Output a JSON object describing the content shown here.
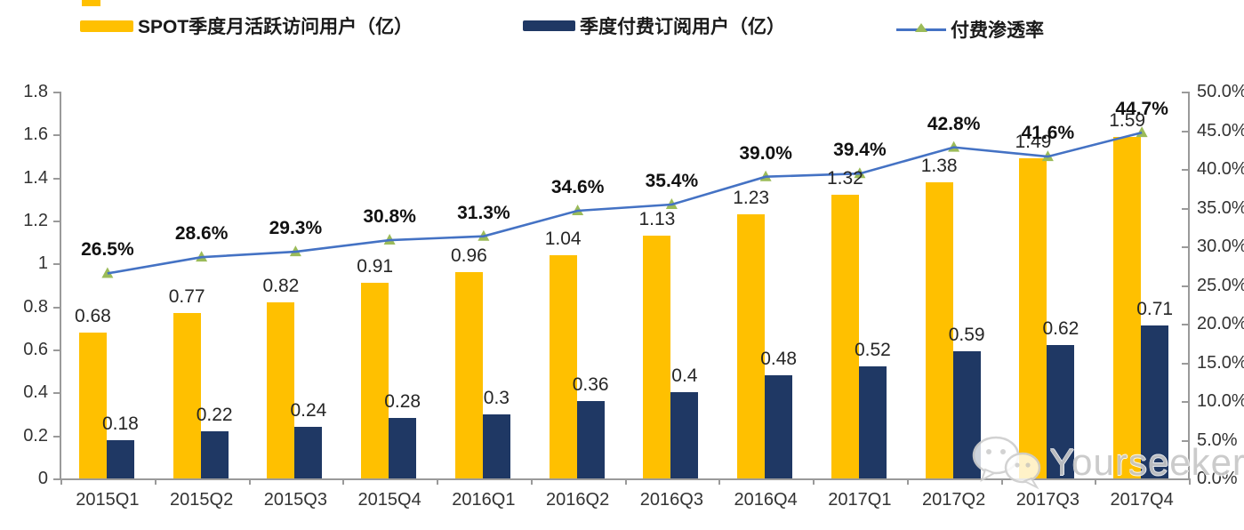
{
  "colors": {
    "bar_mau": "#FFC000",
    "bar_paid": "#1F3864",
    "line": "#4472C4",
    "marker": "#9BBB59",
    "axis": "#9a9a9a"
  },
  "legend": [
    {
      "label": "SPOT季度月活跃访问用户（亿）",
      "type": "bar",
      "color": "#FFC000"
    },
    {
      "label": "季度付费订阅用户（亿）",
      "type": "bar",
      "color": "#1F3864"
    },
    {
      "label": "付费渗透率",
      "type": "line",
      "color": "#4472C4",
      "marker_color": "#9BBB59"
    }
  ],
  "watermark": {
    "text": "Yourseeker",
    "icon": "wechat-icon"
  },
  "chart_data": {
    "type": "bar+line combo",
    "categories": [
      "2015Q1",
      "2015Q2",
      "2015Q3",
      "2015Q4",
      "2016Q1",
      "2016Q2",
      "2016Q3",
      "2016Q4",
      "2017Q1",
      "2017Q2",
      "2017Q3",
      "2017Q4"
    ],
    "series": [
      {
        "name": "SPOT季度月活跃访问用户（亿）",
        "type": "bar",
        "axis": "left",
        "color": "#FFC000",
        "values": [
          0.68,
          0.77,
          0.82,
          0.91,
          0.96,
          1.04,
          1.13,
          1.23,
          1.32,
          1.38,
          1.49,
          1.59
        ],
        "labels": [
          "0.68",
          "0.77",
          "0.82",
          "0.91",
          "0.96",
          "1.04",
          "1.13",
          "1.23",
          "1.32",
          "1.38",
          "1.49",
          "1.59"
        ]
      },
      {
        "name": "季度付费订阅用户（亿）",
        "type": "bar",
        "axis": "left",
        "color": "#1F3864",
        "values": [
          0.18,
          0.22,
          0.24,
          0.28,
          0.3,
          0.36,
          0.4,
          0.48,
          0.52,
          0.59,
          0.62,
          0.71
        ],
        "labels": [
          "0.18",
          "0.22",
          "0.24",
          "0.28",
          "0.3",
          "0.36",
          "0.4",
          "0.48",
          "0.52",
          "0.59",
          "0.62",
          "0.71"
        ]
      },
      {
        "name": "付费渗透率",
        "type": "line",
        "axis": "right",
        "color": "#4472C4",
        "marker": "triangle",
        "marker_color": "#9BBB59",
        "values": [
          26.5,
          28.6,
          29.3,
          30.8,
          31.3,
          34.6,
          35.4,
          39.0,
          39.4,
          42.8,
          41.6,
          44.7
        ],
        "labels": [
          "26.5%",
          "28.6%",
          "29.3%",
          "30.8%",
          "31.3%",
          "34.6%",
          "35.4%",
          "39.0%",
          "39.4%",
          "42.8%",
          "41.6%",
          "44.7%"
        ]
      }
    ],
    "left_axis": {
      "min": 0,
      "max": 1.8,
      "step": 0.2,
      "tick_labels": [
        "0",
        "0.2",
        "0.4",
        "0.6",
        "0.8",
        "1",
        "1.2",
        "1.4",
        "1.6",
        "1.8"
      ]
    },
    "right_axis": {
      "min": 0,
      "max": 50,
      "step": 5,
      "tick_labels": [
        "0.0%",
        "5.0%",
        "10.0%",
        "15.0%",
        "20.0%",
        "25.0%",
        "30.0%",
        "35.0%",
        "40.0%",
        "45.0%",
        "50.0%"
      ]
    },
    "grid": false,
    "legend_position": "top"
  }
}
